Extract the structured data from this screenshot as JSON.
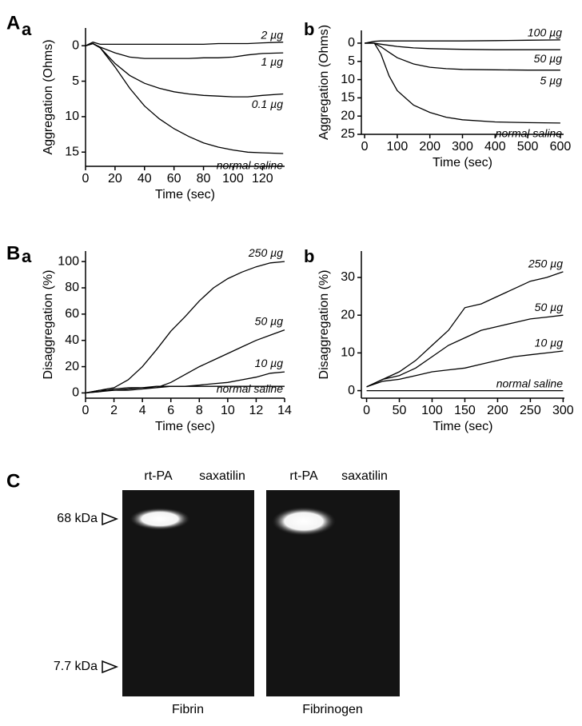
{
  "section_labels": [
    "A",
    "B"
  ],
  "chart_data": [
    {
      "type": "line",
      "panel": "a",
      "color": "#000000",
      "y_inverted": true,
      "ylabel": "Aggregation (Ohms)",
      "xlabel": "Time (sec)",
      "xlim": [
        0,
        135
      ],
      "xticks": [
        0,
        20,
        40,
        60,
        80,
        100,
        120
      ],
      "ylim": [
        -2.5,
        17
      ],
      "yticks": [
        0,
        5,
        10,
        15
      ],
      "x": [
        0,
        5,
        10,
        20,
        30,
        40,
        50,
        60,
        70,
        80,
        90,
        100,
        110,
        120,
        134
      ],
      "series": [
        {
          "name": "2 µg",
          "values": [
            0,
            -0.5,
            -0.2,
            -0.2,
            -0.2,
            -0.2,
            -0.2,
            -0.2,
            -0.2,
            -0.2,
            -0.3,
            -0.3,
            -0.3,
            -0.4,
            -0.5
          ]
        },
        {
          "name": "1 µg",
          "values": [
            0,
            -0.3,
            0.2,
            1,
            1.6,
            1.8,
            1.8,
            1.8,
            1.8,
            1.7,
            1.7,
            1.6,
            1.3,
            1.1,
            1.0
          ]
        },
        {
          "name": "0.1 µg",
          "values": [
            0,
            -0.3,
            0.3,
            2.5,
            4.2,
            5.3,
            6,
            6.5,
            6.8,
            7,
            7.1,
            7.2,
            7.2,
            7,
            6.8
          ]
        },
        {
          "name": "normal saline",
          "values": [
            0,
            -0.3,
            0.3,
            3,
            6,
            8.5,
            10.3,
            11.7,
            12.8,
            13.7,
            14.3,
            14.7,
            15,
            15.1,
            15.2
          ]
        }
      ]
    },
    {
      "type": "line",
      "panel": "b",
      "color": "#000000",
      "y_inverted": true,
      "ylabel": "Aggregation (Ohms)",
      "xlabel": "Time (sec)",
      "xlim": [
        -10,
        610
      ],
      "xticks": [
        0,
        100,
        200,
        300,
        400,
        500,
        600
      ],
      "ylim": [
        -3.5,
        25
      ],
      "yticks": [
        0,
        5,
        10,
        15,
        20,
        25
      ],
      "x": [
        0,
        30,
        50,
        75,
        100,
        150,
        200,
        250,
        300,
        400,
        500,
        600
      ],
      "series": [
        {
          "name": "100 µg",
          "values": [
            0,
            -0.5,
            -0.6,
            -0.6,
            -0.6,
            -0.6,
            -0.6,
            -0.6,
            -0.6,
            -0.7,
            -0.8,
            -0.9
          ]
        },
        {
          "name": "50 µg",
          "values": [
            0,
            0,
            0.3,
            0.6,
            0.9,
            1.3,
            1.5,
            1.6,
            1.7,
            1.8,
            1.8,
            1.8
          ]
        },
        {
          "name": "5 µg",
          "values": [
            0,
            0,
            1,
            2.5,
            4,
            5.7,
            6.6,
            7,
            7.2,
            7.3,
            7.4,
            7.4
          ]
        },
        {
          "name": "normal saline",
          "values": [
            0,
            0,
            3,
            9,
            13,
            17,
            19,
            20.3,
            21,
            21.6,
            21.8,
            21.9
          ]
        }
      ]
    },
    {
      "type": "line",
      "panel": "a",
      "color": "#000000",
      "y_inverted": false,
      "ylabel": "Disaggregation (%)",
      "xlabel": "Time (sec)",
      "xlim": [
        0,
        14
      ],
      "xticks": [
        0,
        2,
        4,
        6,
        8,
        10,
        12,
        14
      ],
      "ylim": [
        -4,
        108
      ],
      "yticks": [
        0,
        20,
        40,
        60,
        80,
        100
      ],
      "x": [
        0,
        1,
        2,
        3,
        4,
        5,
        6,
        7,
        8,
        9,
        10,
        11,
        12,
        13,
        14
      ],
      "series": [
        {
          "name": "250 µg",
          "values": [
            0,
            2,
            4,
            10,
            20,
            33,
            47,
            58,
            70,
            80,
            87,
            92,
            96,
            99,
            100
          ]
        },
        {
          "name": "50 µg",
          "values": [
            0,
            1,
            2,
            3,
            4,
            4,
            8,
            14,
            20,
            25,
            30,
            35,
            40,
            44,
            48
          ]
        },
        {
          "name": "10 µg",
          "values": [
            0,
            2,
            2,
            2,
            3,
            4,
            5,
            5,
            6,
            7,
            8,
            10,
            12,
            15,
            16
          ]
        },
        {
          "name": "normal saline",
          "values": [
            0,
            1,
            3,
            4,
            4,
            5,
            5,
            5,
            5,
            5,
            5,
            5,
            5,
            5,
            5
          ]
        }
      ]
    },
    {
      "type": "line",
      "panel": "b",
      "color": "#000000",
      "y_inverted": false,
      "ylabel": "Disaggregation (%)",
      "xlabel": "Time (sec)",
      "xlim": [
        -8,
        302
      ],
      "xticks": [
        0,
        50,
        100,
        150,
        200,
        250,
        300
      ],
      "ylim": [
        -2,
        37
      ],
      "yticks": [
        0,
        10,
        20,
        30
      ],
      "x": [
        0,
        25,
        50,
        75,
        100,
        125,
        150,
        175,
        200,
        225,
        250,
        275,
        300
      ],
      "series": [
        {
          "name": "250 µg",
          "values": [
            1,
            3,
            5,
            8,
            12,
            16,
            22,
            23,
            25,
            27,
            29,
            30,
            31.5
          ]
        },
        {
          "name": "50 µg",
          "values": [
            1,
            3,
            4,
            6,
            9,
            12,
            14,
            16,
            17,
            18,
            19,
            19.5,
            20
          ]
        },
        {
          "name": "10 µg",
          "values": [
            1,
            2.5,
            3,
            4,
            5,
            5.5,
            6,
            7,
            8,
            9,
            9.5,
            10,
            10.5
          ]
        },
        {
          "name": "normal saline",
          "values": [
            0,
            0,
            0,
            0,
            0,
            0,
            0,
            0,
            0,
            0,
            0,
            0,
            0
          ]
        }
      ]
    }
  ],
  "panel_c": {
    "label": "C",
    "lanes": [
      "rt-PA",
      "saxatilin"
    ],
    "markers": [
      "68 kDa",
      "7.7 kDa"
    ],
    "gels": [
      "Fibrin",
      "Fibrinogen"
    ]
  }
}
